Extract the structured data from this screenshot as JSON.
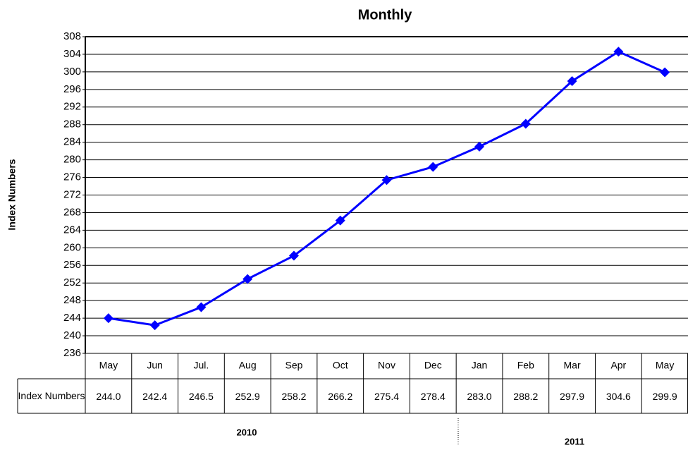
{
  "chart_data": {
    "type": "line",
    "title": "Monthly",
    "y_label": "Index Numbers",
    "table_row_label": "Index Numbers",
    "categories": [
      "May",
      "Jun",
      "Jul.",
      "Aug",
      "Sep",
      "Oct",
      "Nov",
      "Dec",
      "Jan",
      "Feb",
      "Mar",
      "Apr",
      "May"
    ],
    "values": [
      244.0,
      242.4,
      246.5,
      252.9,
      258.2,
      266.2,
      275.4,
      278.4,
      283.0,
      288.2,
      297.9,
      304.6,
      299.9
    ],
    "value_labels": [
      "244.0",
      "242.4",
      "246.5",
      "252.9",
      "258.2",
      "266.2",
      "275.4",
      "278.4",
      "283.0",
      "288.2",
      "297.9",
      "304.6",
      "299.9"
    ],
    "color": "#0000ff",
    "ylim": [
      236,
      308
    ],
    "yticks": [
      236,
      240,
      244,
      248,
      252,
      256,
      260,
      264,
      268,
      272,
      276,
      280,
      284,
      288,
      292,
      296,
      300,
      304,
      308
    ],
    "grid": true,
    "groups": [
      "2010",
      "2011"
    ]
  }
}
